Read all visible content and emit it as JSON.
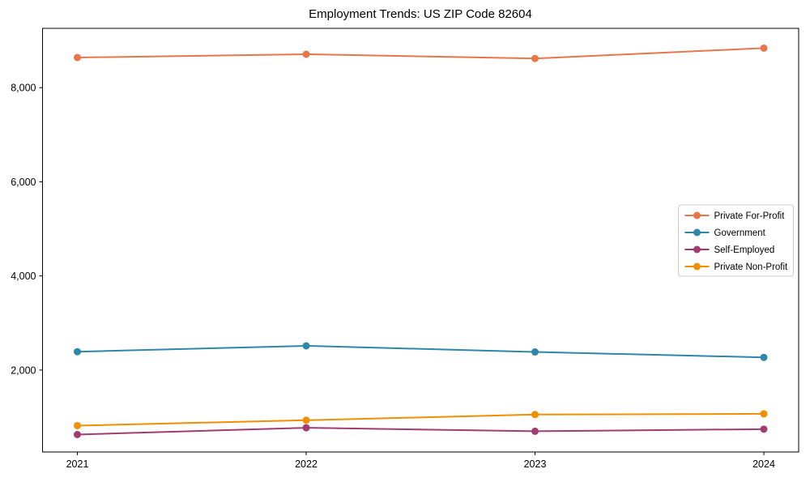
{
  "chart": {
    "title": "Employment Trends: US ZIP Code 82604",
    "background_color": "#ffffff",
    "axes_color": "#000000",
    "legend_border_color": "#cccccc"
  },
  "chart_data": {
    "type": "line",
    "title": "Employment Trends: US ZIP Code 82604",
    "xlabel": "",
    "ylabel": "",
    "x": [
      2021,
      2022,
      2023,
      2024
    ],
    "x_tick_labels": [
      "2021",
      "2022",
      "2023",
      "2024"
    ],
    "y_ticks": [
      2000,
      4000,
      6000,
      8000
    ],
    "y_tick_labels": [
      "2,000",
      "4,000",
      "6,000",
      "8,000"
    ],
    "ylim": [
      260,
      9260
    ],
    "grid": false,
    "legend_position": "center right",
    "marker": "circle",
    "series": [
      {
        "name": "Private For-Profit",
        "color": "#e8764a",
        "values": [
          8640,
          8710,
          8620,
          8840
        ]
      },
      {
        "name": "Government",
        "color": "#2e86ab",
        "values": [
          2390,
          2515,
          2385,
          2270
        ]
      },
      {
        "name": "Self-Employed",
        "color": "#a23b72",
        "values": [
          630,
          775,
          700,
          745
        ]
      },
      {
        "name": "Private Non-Profit",
        "color": "#f18f01",
        "values": [
          820,
          935,
          1055,
          1070
        ]
      }
    ]
  }
}
